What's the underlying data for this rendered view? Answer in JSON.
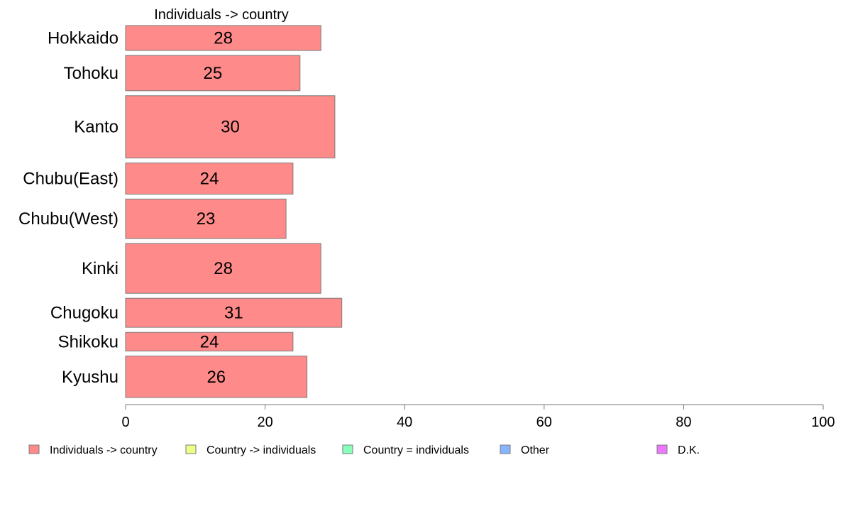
{
  "chart_data": {
    "type": "bar",
    "orientation": "horizontal",
    "series_header": "Individuals -> country",
    "categories": [
      "Hokkaido",
      "Tohoku",
      "Kanto",
      "Chubu(East)",
      "Chubu(West)",
      "Kinki",
      "Chugoku",
      "Shikoku",
      "Kyushu"
    ],
    "values": [
      28,
      25,
      30,
      24,
      23,
      28,
      31,
      24,
      26
    ],
    "relative_sample_weights": [
      0.6,
      0.85,
      1.5,
      0.75,
      0.95,
      1.2,
      0.7,
      0.45,
      1.0
    ],
    "xlim": [
      0,
      100
    ],
    "xticks": [
      0,
      20,
      40,
      60,
      80,
      100
    ],
    "grid": false,
    "bar_color": "#ff8a8a",
    "bar_edge_color": "#7a7a7a",
    "legend": {
      "placement": "bottom",
      "entries": [
        {
          "label": "Individuals -> country",
          "color": "#ff8a8a"
        },
        {
          "label": "Country -> individuals",
          "color": "#eeff88"
        },
        {
          "label": "Country = individuals",
          "color": "#88ffbb"
        },
        {
          "label": "Other",
          "color": "#88b4ff"
        },
        {
          "label": "D.K.",
          "color": "#ee77ff"
        }
      ]
    }
  }
}
